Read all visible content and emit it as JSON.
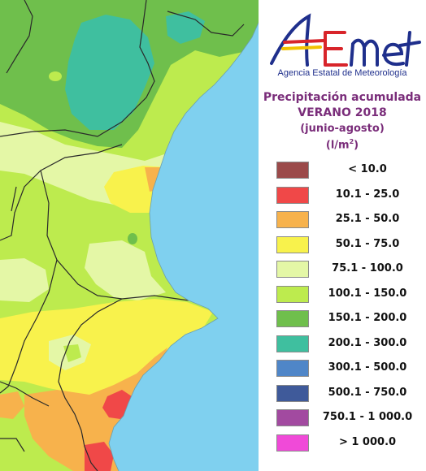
{
  "logo": {
    "name": "AEMet",
    "subtitle": "Agencia Estatal de Meteorología",
    "colors": {
      "blue": "#1f2f8c",
      "red": "#d8242a",
      "yellow": "#f2c200"
    }
  },
  "title": {
    "line1": "Precipitación acumulada",
    "line2": "VERANO 2018",
    "line3": "(junio-agosto)",
    "unit_base": "(l/m",
    "unit_sup": "2",
    "unit_close": ")"
  },
  "legend": [
    {
      "label": "< 10.0",
      "color": "#9b4a4a"
    },
    {
      "label": "10.1 - 25.0",
      "color": "#f04848"
    },
    {
      "label": "25.1 - 50.0",
      "color": "#f7b24c"
    },
    {
      "label": "50.1 - 75.0",
      "color": "#f8f24c"
    },
    {
      "label": "75.1 - 100.0",
      "color": "#e4f7a6"
    },
    {
      "label": "100.1 - 150.0",
      "color": "#bdeb4e"
    },
    {
      "label": "150.1 - 200.0",
      "color": "#6fbf4c"
    },
    {
      "label": "200.1 - 300.0",
      "color": "#3fbf9f"
    },
    {
      "label": "300.1 - 500.0",
      "color": "#4f86c8"
    },
    {
      "label": "500.1 - 750.0",
      "color": "#3f5a9a"
    },
    {
      "label": "750.1 - 1 000.0",
      "color": "#a24aa0"
    },
    {
      "label": "> 1 000.0",
      "color": "#f04ad8"
    }
  ],
  "map": {
    "sea_color": "#7fd0ef",
    "border_color": "#2a2a2a"
  }
}
